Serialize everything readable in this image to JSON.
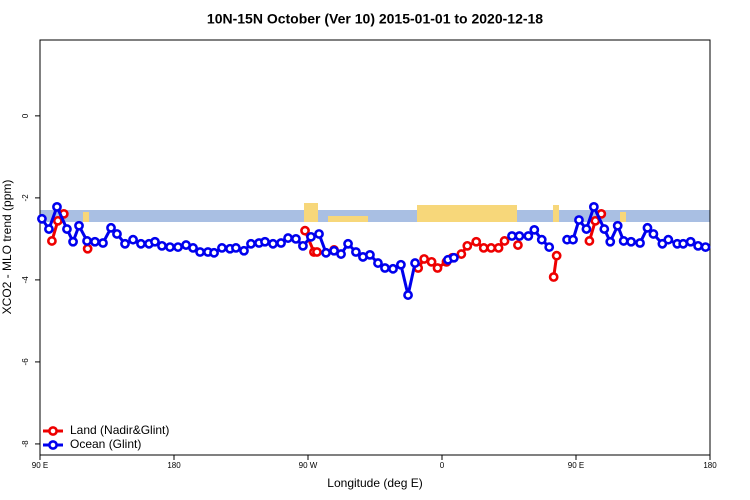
{
  "chart_data": {
    "type": "line",
    "title": "10N-15N October (Ver 10)   2015-01-01 to 2020-12-18",
    "xlabel": "Longitude (deg E)",
    "ylabel": "XCO2 - MLO trend (ppm)",
    "xlim": [
      90,
      540
    ],
    "xticks": [
      {
        "value": 90,
        "label": "90 E"
      },
      180,
      {
        "value": 270,
        "label": "90 W"
      },
      {
        "value": 360,
        "label": "0"
      },
      {
        "value": 450,
        "label": "90 E"
      },
      {
        "value": 540,
        "label": "180"
      }
    ],
    "ylim": [
      -8.27,
      1.85
    ],
    "yticks": [
      0,
      -2,
      -4,
      -6,
      -8
    ],
    "legend": "bottomleft",
    "series": [
      {
        "name": "Land (Nadir&Glint)",
        "color": "#ee0000",
        "x": [
          98,
          102,
          106,
          null,
          122,
          null,
          268,
          274,
          276,
          null,
          287.5,
          null,
          344,
          348,
          353,
          357,
          363,
          367,
          373,
          377,
          383,
          388,
          393,
          398,
          402,
          null,
          411,
          null,
          435,
          437,
          null,
          459,
          463,
          467
        ],
        "values": [
          -3.05,
          -2.56,
          -2.39,
          null,
          -3.24,
          null,
          -2.8,
          -3.32,
          -3.32,
          null,
          -3.27,
          null,
          -3.71,
          -3.49,
          -3.56,
          -3.71,
          -3.56,
          -3.46,
          -3.37,
          -3.17,
          -3.07,
          -3.22,
          -3.22,
          -3.22,
          -3.05,
          null,
          -3.15,
          null,
          -3.93,
          -3.41,
          null,
          -3.05,
          -2.56,
          -2.39
        ]
      },
      {
        "name": "Ocean (Glint)",
        "color": "#0000ee",
        "x": [
          91.3,
          96,
          101.4,
          108.1,
          112.2,
          116.2,
          121.6,
          126.9,
          132.3,
          137.7,
          141.7,
          147.1,
          152.5,
          157.8,
          163.2,
          167.2,
          171.9,
          177.3,
          182.7,
          188.1,
          192.8,
          197.5,
          202.8,
          206.9,
          212.2,
          217.6,
          221.6,
          227,
          231.7,
          237.1,
          241.1,
          246.5,
          251.9,
          256.6,
          261.9,
          266.6,
          272,
          277.4,
          282.1,
          287.5,
          292.2,
          296.9,
          302.2,
          306.9,
          311.6,
          317,
          321.7,
          327.1,
          332.4,
          337.2,
          341.9,
          null,
          364,
          368,
          null,
          407,
          412,
          418,
          422,
          427,
          432,
          null,
          444,
          448,
          452,
          457,
          462,
          469,
          473,
          478,
          482,
          487,
          493,
          498,
          502,
          508,
          512,
          518,
          522,
          527,
          532,
          537
        ],
        "values": [
          -2.51,
          -2.76,
          -2.22,
          -2.76,
          -3.07,
          -2.68,
          -3.05,
          -3.07,
          -3.1,
          -2.73,
          -2.88,
          -3.12,
          -3.02,
          -3.12,
          -3.12,
          -3.07,
          -3.17,
          -3.2,
          -3.2,
          -3.15,
          -3.22,
          -3.32,
          -3.32,
          -3.34,
          -3.22,
          -3.24,
          -3.22,
          -3.29,
          -3.12,
          -3.1,
          -3.07,
          -3.12,
          -3.1,
          -2.98,
          -3.0,
          -3.17,
          -2.95,
          -2.88,
          -3.34,
          -3.29,
          -3.37,
          -3.12,
          -3.32,
          -3.44,
          -3.39,
          -3.59,
          -3.71,
          -3.73,
          -3.63,
          -4.37,
          -3.59,
          null,
          -3.51,
          -3.46,
          null,
          -2.93,
          -2.93,
          -2.93,
          -2.78,
          -3.02,
          -3.2,
          null,
          -3.02,
          -3.02,
          -2.54,
          -2.76,
          -2.22,
          -2.76,
          -3.07,
          -2.68,
          -3.05,
          -3.07,
          -3.1,
          -2.73,
          -2.88,
          -3.12,
          -3.02,
          -3.12,
          -3.12,
          -3.07,
          -3.17,
          -3.2
        ]
      }
    ]
  }
}
